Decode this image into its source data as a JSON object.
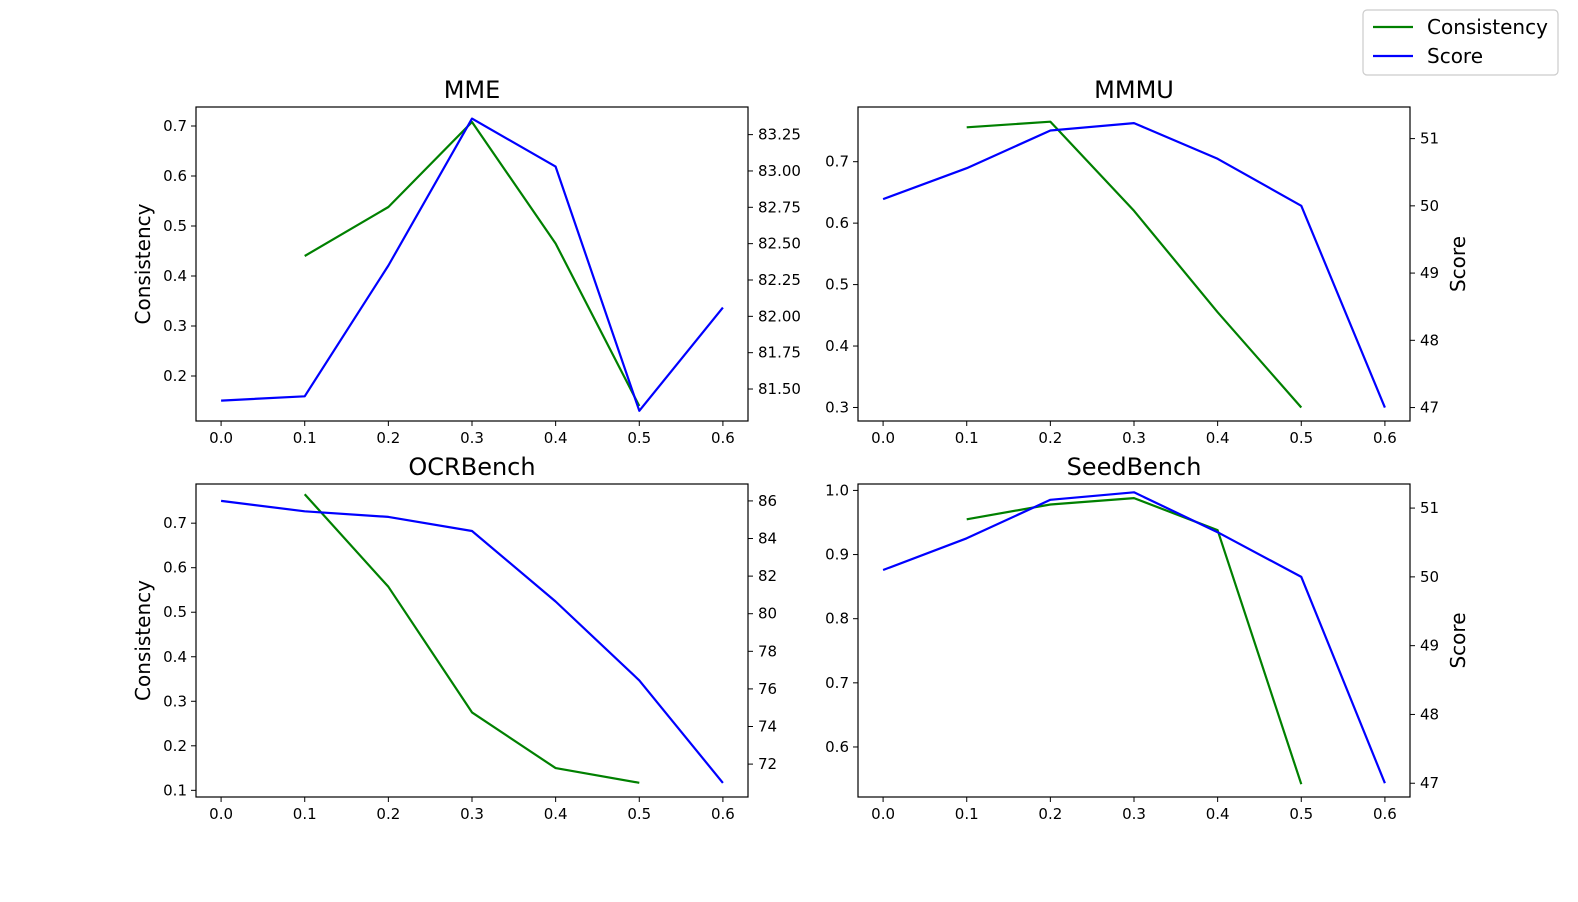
{
  "legend": {
    "entries": [
      {
        "name": "Consistency",
        "color": "#008000"
      },
      {
        "name": "Score",
        "color": "#0000ff"
      }
    ]
  },
  "chart_data": [
    {
      "type": "line",
      "title": "MME",
      "xlabel": "",
      "ylabel_left": "Consistency",
      "ylabel_right": "",
      "x_ticks": [
        "0.0",
        "0.1",
        "0.2",
        "0.3",
        "0.4",
        "0.5",
        "0.6"
      ],
      "left_ticks": [
        "0.2",
        "0.3",
        "0.4",
        "0.5",
        "0.6",
        "0.7"
      ],
      "right_ticks": [
        "81.50",
        "81.75",
        "82.00",
        "82.25",
        "82.50",
        "82.75",
        "83.00",
        "83.25"
      ],
      "xlim": [
        -0.03,
        0.63
      ],
      "ylim_left": [
        0.11,
        0.738
      ],
      "ylim_right": [
        81.28,
        83.44
      ],
      "series": [
        {
          "name": "Consistency",
          "color": "#008000",
          "axis": "left",
          "x": [
            0.1,
            0.2,
            0.3,
            0.4,
            0.5
          ],
          "values": [
            0.44,
            0.538,
            0.708,
            0.465,
            0.14
          ]
        },
        {
          "name": "Score",
          "color": "#0000ff",
          "axis": "right",
          "x": [
            0.0,
            0.1,
            0.2,
            0.3,
            0.4,
            0.5,
            0.6
          ],
          "values": [
            81.42,
            81.45,
            82.35,
            83.36,
            83.03,
            81.35,
            82.06
          ]
        }
      ]
    },
    {
      "type": "line",
      "title": "MMMU",
      "xlabel": "",
      "ylabel_left": "",
      "ylabel_right": "Score",
      "x_ticks": [
        "0.0",
        "0.1",
        "0.2",
        "0.3",
        "0.4",
        "0.5",
        "0.6"
      ],
      "left_ticks": [
        "0.3",
        "0.4",
        "0.5",
        "0.6",
        "0.7"
      ],
      "right_ticks": [
        "47",
        "48",
        "49",
        "50",
        "51"
      ],
      "xlim": [
        -0.03,
        0.63
      ],
      "ylim_left": [
        0.278,
        0.789
      ],
      "ylim_right": [
        46.8,
        51.47
      ],
      "series": [
        {
          "name": "Consistency",
          "color": "#008000",
          "axis": "left",
          "x": [
            0.1,
            0.2,
            0.3,
            0.4,
            0.5
          ],
          "values": [
            0.756,
            0.765,
            0.62,
            0.455,
            0.3
          ]
        },
        {
          "name": "Score",
          "color": "#0000ff",
          "axis": "right",
          "x": [
            0.0,
            0.1,
            0.2,
            0.3,
            0.4,
            0.5,
            0.6
          ],
          "values": [
            50.1,
            50.56,
            51.12,
            51.23,
            50.7,
            50.0,
            47.0
          ]
        }
      ]
    },
    {
      "type": "line",
      "title": "OCRBench",
      "xlabel": "",
      "ylabel_left": "Consistency",
      "ylabel_right": "",
      "x_ticks": [
        "0.0",
        "0.1",
        "0.2",
        "0.3",
        "0.4",
        "0.5",
        "0.6"
      ],
      "left_ticks": [
        "0.1",
        "0.2",
        "0.3",
        "0.4",
        "0.5",
        "0.6",
        "0.7"
      ],
      "right_ticks": [
        "72",
        "74",
        "76",
        "78",
        "80",
        "82",
        "84",
        "86"
      ],
      "xlim": [
        -0.03,
        0.63
      ],
      "ylim_left": [
        0.085,
        0.788
      ],
      "ylim_right": [
        70.25,
        86.9
      ],
      "series": [
        {
          "name": "Consistency",
          "color": "#008000",
          "axis": "left",
          "x": [
            0.1,
            0.2,
            0.3,
            0.4,
            0.5
          ],
          "values": [
            0.765,
            0.557,
            0.275,
            0.15,
            0.117
          ]
        },
        {
          "name": "Score",
          "color": "#0000ff",
          "axis": "right",
          "x": [
            0.0,
            0.1,
            0.2,
            0.3,
            0.4,
            0.5,
            0.6
          ],
          "values": [
            86.0,
            85.45,
            85.15,
            84.4,
            80.65,
            76.45,
            71.0
          ]
        }
      ]
    },
    {
      "type": "line",
      "title": "SeedBench",
      "xlabel": "",
      "ylabel_left": "",
      "ylabel_right": "Score",
      "x_ticks": [
        "0.0",
        "0.1",
        "0.2",
        "0.3",
        "0.4",
        "0.5",
        "0.6"
      ],
      "left_ticks": [
        "0.6",
        "0.7",
        "0.8",
        "0.9",
        "1.0"
      ],
      "right_ticks": [
        "47",
        "48",
        "49",
        "50",
        "51"
      ],
      "xlim": [
        -0.03,
        0.63
      ],
      "ylim_left": [
        0.522,
        1.01
      ],
      "ylim_right": [
        46.8,
        51.35
      ],
      "series": [
        {
          "name": "Consistency",
          "color": "#008000",
          "axis": "left",
          "x": [
            0.1,
            0.2,
            0.3,
            0.4,
            0.5
          ],
          "values": [
            0.955,
            0.978,
            0.988,
            0.938,
            0.542
          ]
        },
        {
          "name": "Score",
          "color": "#0000ff",
          "axis": "right",
          "x": [
            0.0,
            0.1,
            0.2,
            0.3,
            0.4,
            0.5,
            0.6
          ],
          "values": [
            50.1,
            50.56,
            51.12,
            51.23,
            50.65,
            50.0,
            47.0
          ]
        }
      ]
    }
  ]
}
